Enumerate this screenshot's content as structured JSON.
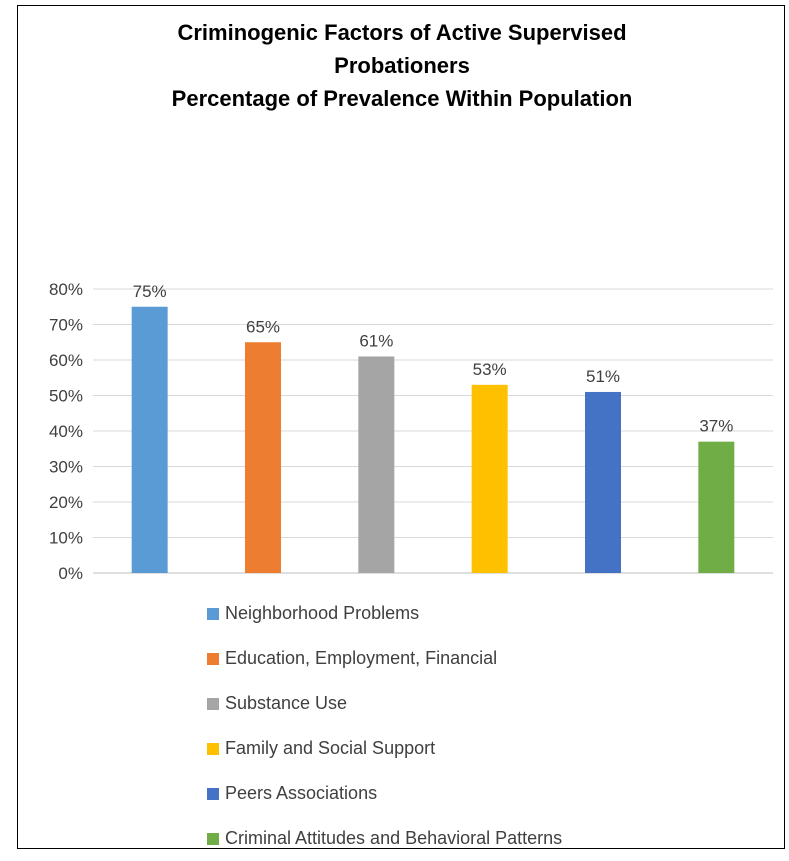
{
  "chart_data": {
    "type": "bar",
    "title_lines": [
      "Criminogenic Factors of Active Supervised",
      "Probationers",
      "Percentage of Prevalence Within Population"
    ],
    "categories": [
      "Neighborhood Problems",
      "Education, Employment, Financial",
      "Substance Use",
      "Family and Social Support",
      "Peers Associations",
      "Criminal Attitudes and Behavioral Patterns"
    ],
    "values": [
      75,
      65,
      61,
      53,
      51,
      37
    ],
    "data_labels": [
      "75%",
      "65%",
      "61%",
      "53%",
      "51%",
      "37%"
    ],
    "colors": [
      "#5b9bd5",
      "#ed7d31",
      "#a5a5a5",
      "#ffc000",
      "#4472c4",
      "#70ad47"
    ],
    "y_ticks": [
      "0%",
      "10%",
      "20%",
      "30%",
      "40%",
      "50%",
      "60%",
      "70%",
      "80%"
    ],
    "ylim": [
      0,
      80
    ],
    "grid": true,
    "legend_position": "bottom",
    "xlabel": "",
    "ylabel": ""
  }
}
